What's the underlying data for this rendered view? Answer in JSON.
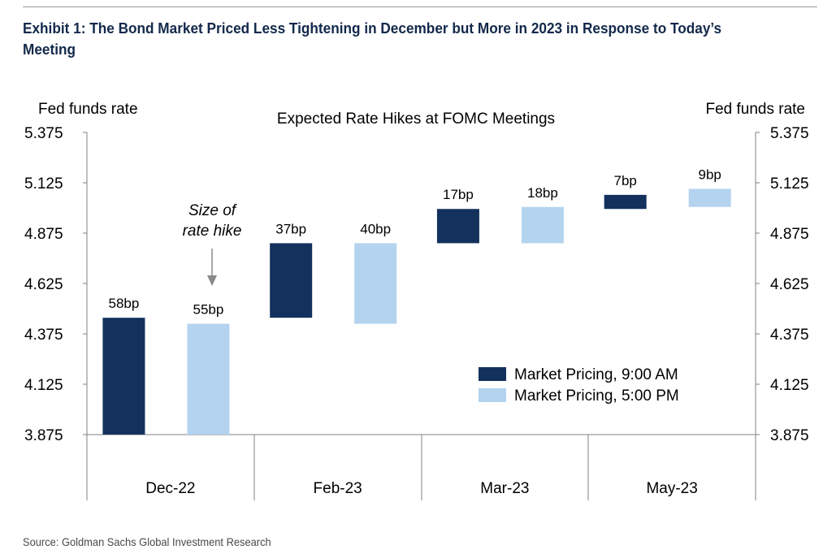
{
  "exhibit": {
    "title": "Exhibit 1: The Bond Market Priced Less Tightening in December but More in 2023 in Response to Today’s Meeting",
    "source": "Source: Goldman Sachs Global Investment Research"
  },
  "chart_data": {
    "type": "bar",
    "subtype": "floating-bar",
    "title": "Expected Rate Hikes at FOMC Meetings",
    "y_axis_left_label": "Fed funds rate",
    "y_axis_right_label": "Fed funds rate",
    "ylim": [
      3.875,
      5.375
    ],
    "y_ticks": [
      "5.375",
      "5.125",
      "4.875",
      "4.625",
      "4.375",
      "4.125",
      "3.875"
    ],
    "categories": [
      "Dec-22",
      "Feb-23",
      "Mar-23",
      "May-23"
    ],
    "grid": false,
    "legend_position": "lower-right",
    "series": [
      {
        "name": "Market Pricing, 9:00 AM",
        "color": "#13315c",
        "bars": [
          {
            "category": "Dec-22",
            "from": 3.875,
            "to": 4.455,
            "label": "58bp"
          },
          {
            "category": "Feb-23",
            "from": 4.455,
            "to": 4.825,
            "label": "37bp"
          },
          {
            "category": "Mar-23",
            "from": 4.825,
            "to": 4.995,
            "label": "17bp"
          },
          {
            "category": "May-23",
            "from": 4.995,
            "to": 5.065,
            "label": "7bp"
          }
        ]
      },
      {
        "name": "Market Pricing, 5:00 PM",
        "color": "#b4d3ef",
        "bars": [
          {
            "category": "Dec-22",
            "from": 3.875,
            "to": 4.425,
            "label": "55bp"
          },
          {
            "category": "Feb-23",
            "from": 4.425,
            "to": 4.825,
            "label": "40bp"
          },
          {
            "category": "Mar-23",
            "from": 4.825,
            "to": 5.005,
            "label": "18bp"
          },
          {
            "category": "May-23",
            "from": 5.005,
            "to": 5.095,
            "label": "9bp"
          }
        ]
      }
    ],
    "annotation": {
      "lines": [
        "Size of",
        "rate hike"
      ],
      "arrow": "down",
      "points_to": "Dec-22 Market Pricing, 5:00 PM"
    }
  }
}
